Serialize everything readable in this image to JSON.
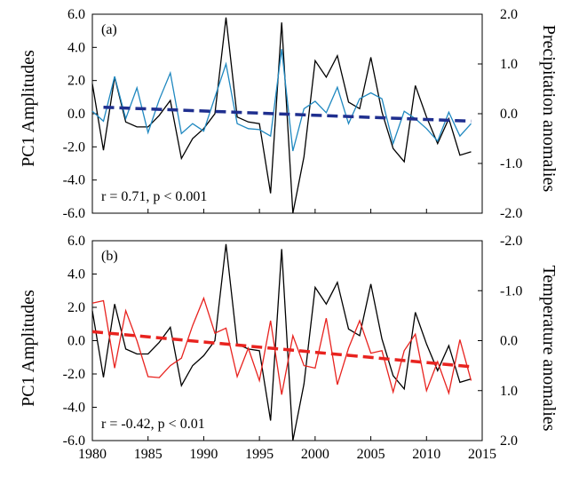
{
  "chart_data": [
    {
      "type": "line",
      "panel_label": "(a)",
      "annotation": "r = 0.71, p < 0.001",
      "ylabel_left": "PC1 Amplitudes",
      "ylabel_right": "Precipitation anomalies",
      "xlim": [
        1980,
        2015
      ],
      "ylim_left": [
        -6,
        6
      ],
      "ylim_right": [
        -2,
        2
      ],
      "right_axis_inverted": false,
      "left_ticks": [
        "6.0",
        "4.0",
        "2.0",
        "0.0",
        "-2.0",
        "-4.0",
        "-6.0"
      ],
      "right_ticks": [
        "2.0",
        "1.0",
        "0.0",
        "-1.0",
        "-2.0"
      ],
      "x": [
        1980,
        1981,
        1982,
        1983,
        1984,
        1985,
        1986,
        1987,
        1988,
        1989,
        1990,
        1991,
        1992,
        1993,
        1994,
        1995,
        1996,
        1997,
        1998,
        1999,
        2000,
        2001,
        2002,
        2003,
        2004,
        2005,
        2006,
        2007,
        2008,
        2009,
        2010,
        2011,
        2012,
        2013,
        2014
      ],
      "series": [
        {
          "axis": "left",
          "color": "#000000",
          "values": [
            1.8,
            -2.2,
            2.2,
            -0.5,
            -0.8,
            -0.8,
            -0.1,
            0.8,
            -2.7,
            -1.5,
            -0.9,
            0.0,
            5.8,
            -0.2,
            -0.5,
            -0.6,
            -4.8,
            5.5,
            -6.0,
            -2.6,
            3.2,
            2.2,
            3.5,
            0.7,
            0.3,
            3.4,
            0.1,
            -2.1,
            -2.9,
            1.7,
            -0.2,
            -1.8,
            -0.3,
            -2.5,
            -2.3
          ]
        },
        {
          "axis": "right",
          "color": "#1f88c0",
          "values": [
            0.05,
            -0.15,
            0.75,
            -0.1,
            0.52,
            -0.38,
            0.28,
            0.82,
            -0.4,
            -0.2,
            -0.35,
            0.33,
            1.0,
            -0.2,
            -0.3,
            -0.32,
            -0.45,
            1.3,
            -0.75,
            0.1,
            0.25,
            0.02,
            0.53,
            -0.2,
            0.3,
            0.42,
            0.3,
            -0.6,
            0.05,
            -0.1,
            -0.3,
            -0.55,
            0.03,
            -0.45,
            -0.2
          ]
        },
        {
          "axis": "right",
          "color": "#1f2f8f",
          "dashed": true,
          "values": [
            0.13,
            -0.15
          ],
          "x": [
            1981,
            2014
          ]
        }
      ]
    },
    {
      "type": "line",
      "panel_label": "(b)",
      "annotation": "r = -0.42, p < 0.01",
      "ylabel_left": "PC1 Amplitudes",
      "ylabel_right": "Temperature anomalies",
      "xlim": [
        1980,
        2015
      ],
      "ylim_left": [
        -6,
        6
      ],
      "ylim_right": [
        -2,
        2
      ],
      "right_axis_inverted": true,
      "left_ticks": [
        "6.0",
        "4.0",
        "2.0",
        "0.0",
        "-2.0",
        "-4.0",
        "-6.0"
      ],
      "right_ticks": [
        "-2.0",
        "-1.0",
        "0.0",
        "1.0",
        "2.0"
      ],
      "xticks": [
        "1980",
        "1985",
        "1990",
        "1995",
        "2000",
        "2005",
        "2010",
        "2015"
      ],
      "x": [
        1980,
        1981,
        1982,
        1983,
        1984,
        1985,
        1986,
        1987,
        1988,
        1989,
        1990,
        1991,
        1992,
        1993,
        1994,
        1995,
        1996,
        1997,
        1998,
        1999,
        2000,
        2001,
        2002,
        2003,
        2004,
        2005,
        2006,
        2007,
        2008,
        2009,
        2010,
        2011,
        2012,
        2013,
        2014
      ],
      "series": [
        {
          "axis": "left",
          "color": "#000000",
          "values": [
            1.8,
            -2.2,
            2.2,
            -0.5,
            -0.8,
            -0.8,
            -0.1,
            0.8,
            -2.7,
            -1.5,
            -0.9,
            0.0,
            5.8,
            -0.2,
            -0.5,
            -0.6,
            -4.8,
            5.5,
            -6.0,
            -2.6,
            3.2,
            2.2,
            3.5,
            0.7,
            0.3,
            3.4,
            0.1,
            -2.1,
            -2.9,
            1.7,
            -0.2,
            -1.8,
            -0.3,
            -2.5,
            -2.3
          ]
        },
        {
          "axis": "right",
          "color": "#e8231f",
          "values": [
            -0.75,
            -0.8,
            0.55,
            -0.6,
            0.0,
            0.72,
            0.74,
            0.5,
            0.35,
            -0.3,
            -0.85,
            -0.15,
            -0.25,
            0.72,
            0.15,
            0.8,
            -0.4,
            1.08,
            -0.1,
            0.5,
            0.55,
            -0.45,
            0.88,
            0.15,
            -0.4,
            0.25,
            0.2,
            1.03,
            0.2,
            -0.13,
            1.0,
            0.42,
            1.05,
            -0.02,
            0.8
          ]
        },
        {
          "axis": "right",
          "color": "#e8231f",
          "dashed": true,
          "values": [
            -0.18,
            0.52
          ],
          "x": [
            1980,
            2014
          ]
        }
      ]
    }
  ]
}
